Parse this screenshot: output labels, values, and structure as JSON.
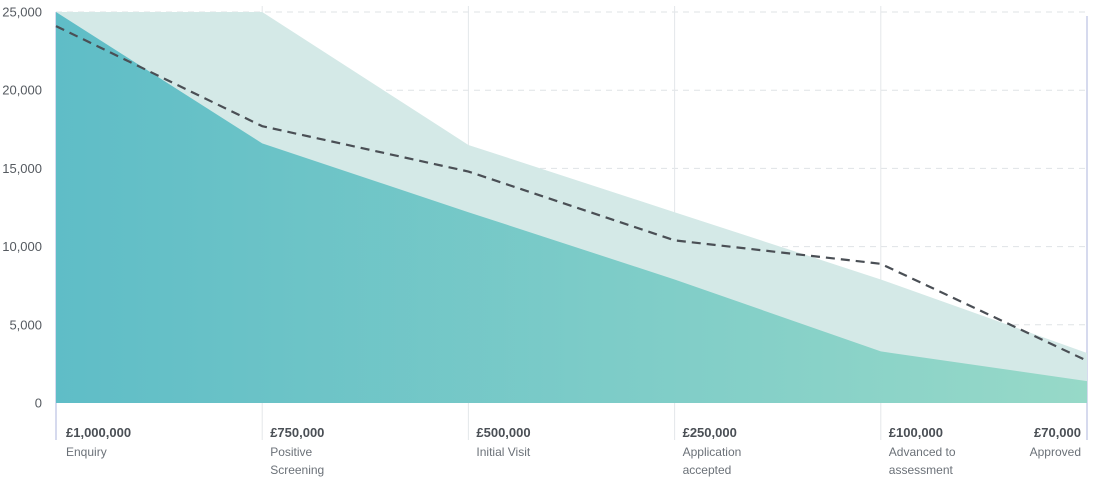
{
  "chart_data": {
    "type": "area",
    "categories": [
      {
        "value_label": "£1,000,000",
        "name_lines": [
          "Enquiry"
        ]
      },
      {
        "value_label": "£750,000",
        "name_lines": [
          "Positive",
          "Screening"
        ]
      },
      {
        "value_label": "£500,000",
        "name_lines": [
          "Initial Visit"
        ]
      },
      {
        "value_label": "£250,000",
        "name_lines": [
          "Application",
          "accepted"
        ]
      },
      {
        "value_label": "£100,000",
        "name_lines": [
          "Advanced to",
          "assessment"
        ]
      },
      {
        "value_label": "£70,000",
        "name_lines": [
          "Approved"
        ]
      }
    ],
    "y_ticks": [
      "0",
      "5,000",
      "10,000",
      "15,000",
      "20,000",
      "25,000"
    ],
    "ylim": [
      0,
      25000
    ],
    "grid": true,
    "series": [
      {
        "kind": "band",
        "values": [
          25000,
          25000,
          16500,
          12200,
          7900,
          3200
        ]
      },
      {
        "kind": "area",
        "values": [
          25000,
          16600,
          12200,
          7900,
          3300,
          1400
        ]
      },
      {
        "kind": "dashed-line",
        "values": [
          24100,
          17700,
          14800,
          10400,
          8900,
          2700
        ]
      }
    ],
    "colors": {
      "band": "#d4e9e7",
      "area_start": "#5fbdc7",
      "area_end": "#97d9c8",
      "line": "#4a4f55",
      "grid": "#dfe3e6",
      "stage_divider": "#e4e7ea",
      "right_rule": "#c9cde8"
    }
  }
}
